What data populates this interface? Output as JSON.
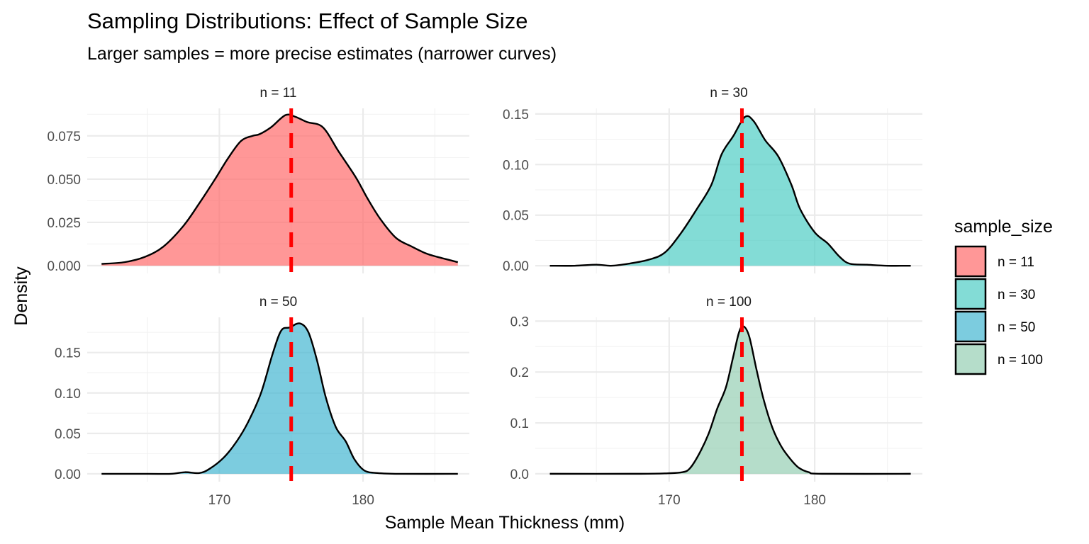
{
  "chart_data": {
    "type": "area",
    "title": "Sampling Distributions: Effect of Sample Size",
    "subtitle": "Larger samples = more precise estimates (narrower curves)",
    "xlabel": "Sample Mean Thickness (mm)",
    "ylabel": "Density",
    "x_ticks": [
      170,
      180
    ],
    "xlim": [
      160.8,
      187.4
    ],
    "grid": true,
    "reference_line": {
      "x": 175,
      "color": "#FF0000",
      "style": "dashed"
    },
    "legend": {
      "title": "sample_size",
      "position": "right",
      "entries": [
        {
          "label": "n = 11",
          "color": "#FF6B6B"
        },
        {
          "label": "n = 30",
          "color": "#4ECDC4"
        },
        {
          "label": "n = 50",
          "color": "#45B7D1"
        },
        {
          "label": "n = 100",
          "color": "#96CEB4"
        }
      ]
    },
    "panels": [
      {
        "label": "n = 11",
        "color": "#FF6B6B",
        "ylim": [
          -0.0045,
          0.0909
        ],
        "y_ticks": [
          0.0,
          0.025,
          0.05,
          0.075
        ],
        "y_tick_labels": [
          "0.000",
          "0.025",
          "0.050",
          "0.075"
        ],
        "x": [
          161.8,
          163.4,
          164.8,
          166.1,
          167.5,
          168.6,
          169.7,
          170.6,
          171.5,
          172.3,
          172.8,
          173.6,
          174.6,
          175.3,
          176.1,
          177.2,
          178.3,
          179.5,
          180.3,
          181.2,
          182.3,
          183.4,
          184.4,
          185.2,
          186.6
        ],
        "density": [
          0.001,
          0.002,
          0.005,
          0.011,
          0.023,
          0.036,
          0.05,
          0.062,
          0.072,
          0.075,
          0.076,
          0.08,
          0.087,
          0.086,
          0.083,
          0.08,
          0.066,
          0.051,
          0.039,
          0.027,
          0.016,
          0.011,
          0.007,
          0.005,
          0.002
        ]
      },
      {
        "label": "n = 30",
        "color": "#4ECDC4",
        "ylim": [
          -0.0076,
          0.1555
        ],
        "y_ticks": [
          0.0,
          0.05,
          0.1,
          0.15
        ],
        "y_tick_labels": [
          "0.00",
          "0.05",
          "0.10",
          "0.15"
        ],
        "x": [
          161.8,
          163.5,
          165.0,
          166.0,
          167.2,
          168.6,
          169.7,
          170.8,
          171.9,
          172.9,
          173.6,
          174.4,
          175.2,
          175.8,
          176.6,
          177.5,
          178.4,
          179.0,
          180.0,
          180.9,
          181.7,
          182.4,
          183.6,
          185.0,
          186.6
        ],
        "density": [
          0.0,
          0.0,
          0.001,
          0.0,
          0.002,
          0.006,
          0.013,
          0.032,
          0.056,
          0.08,
          0.11,
          0.128,
          0.147,
          0.143,
          0.124,
          0.108,
          0.08,
          0.056,
          0.033,
          0.022,
          0.009,
          0.002,
          0.001,
          0.0,
          0.0
        ]
      },
      {
        "label": "n = 50",
        "color": "#45B7D1",
        "ylim": [
          -0.0097,
          0.1935
        ],
        "y_ticks": [
          0.0,
          0.05,
          0.1,
          0.15
        ],
        "y_tick_labels": [
          "0.00",
          "0.05",
          "0.10",
          "0.15"
        ],
        "x": [
          161.8,
          165.0,
          166.6,
          167.6,
          168.6,
          169.3,
          170.3,
          171.2,
          172.0,
          172.9,
          173.7,
          174.3,
          174.9,
          175.6,
          176.2,
          176.8,
          177.4,
          178.1,
          178.8,
          179.4,
          180.1,
          181.0,
          182.5,
          186.6
        ],
        "density": [
          0.0,
          0.0,
          0.0,
          0.002,
          0.001,
          0.006,
          0.02,
          0.04,
          0.064,
          0.1,
          0.148,
          0.177,
          0.181,
          0.186,
          0.175,
          0.14,
          0.095,
          0.058,
          0.04,
          0.018,
          0.004,
          0.001,
          0.0,
          0.0
        ]
      },
      {
        "label": "n = 100",
        "color": "#96CEB4",
        "ylim": [
          -0.0155,
          0.3075
        ],
        "y_ticks": [
          0.0,
          0.1,
          0.2,
          0.3
        ],
        "y_tick_labels": [
          "0.0",
          "0.1",
          "0.2",
          "0.3"
        ],
        "x": [
          161.8,
          168.0,
          169.9,
          170.9,
          171.4,
          172.0,
          172.7,
          173.3,
          173.9,
          174.4,
          174.8,
          175.1,
          175.5,
          176.0,
          176.5,
          177.1,
          177.7,
          178.3,
          178.9,
          179.6,
          180.5,
          186.6
        ],
        "density": [
          0.0,
          0.0,
          0.001,
          0.003,
          0.01,
          0.036,
          0.078,
          0.128,
          0.17,
          0.23,
          0.278,
          0.29,
          0.27,
          0.205,
          0.145,
          0.09,
          0.054,
          0.03,
          0.012,
          0.003,
          0.0,
          0.0
        ]
      }
    ]
  }
}
